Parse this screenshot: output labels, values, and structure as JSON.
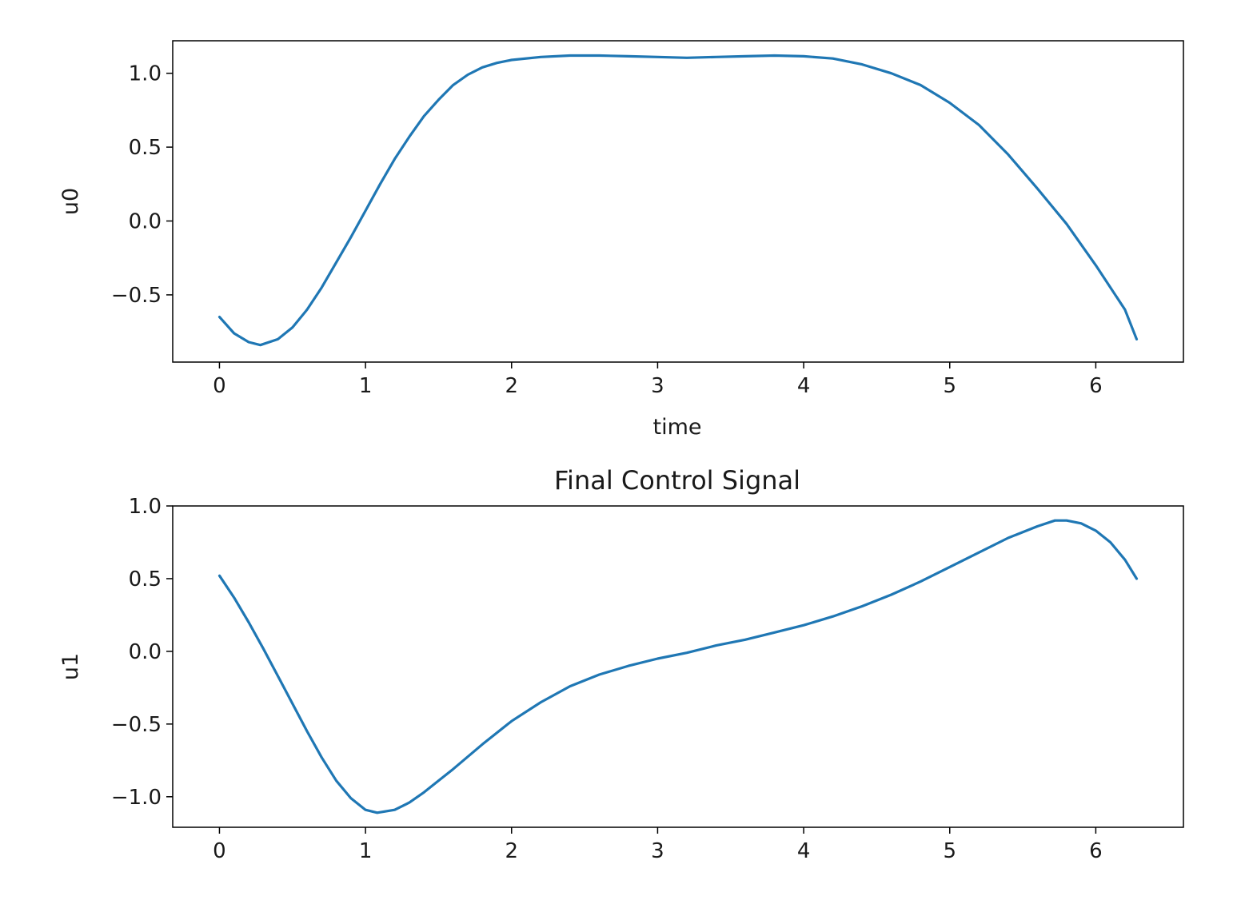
{
  "chart_data": [
    {
      "type": "line",
      "title": "",
      "xlabel": "time",
      "ylabel": "u0",
      "xlim": [
        -0.32,
        6.6
      ],
      "ylim": [
        -0.955,
        1.22
      ],
      "xticks": [
        0,
        1,
        2,
        3,
        4,
        5,
        6
      ],
      "yticks": [
        -0.5,
        0.0,
        0.5,
        1.0
      ],
      "xtick_labels": [
        "0",
        "1",
        "2",
        "3",
        "4",
        "5",
        "6"
      ],
      "ytick_labels": [
        "−0.5",
        "0.0",
        "0.5",
        "1.0"
      ],
      "grid": false,
      "line_color": "#1f77b4",
      "series": [
        {
          "x": [
            0.0,
            0.1,
            0.2,
            0.28,
            0.4,
            0.5,
            0.6,
            0.7,
            0.8,
            0.9,
            1.0,
            1.1,
            1.2,
            1.3,
            1.4,
            1.5,
            1.6,
            1.7,
            1.8,
            1.9,
            2.0,
            2.2,
            2.4,
            2.6,
            2.8,
            3.0,
            3.2,
            3.4,
            3.6,
            3.8,
            4.0,
            4.2,
            4.4,
            4.6,
            4.8,
            5.0,
            5.2,
            5.4,
            5.6,
            5.8,
            6.0,
            6.2,
            6.28
          ],
          "y": [
            -0.65,
            -0.76,
            -0.82,
            -0.84,
            -0.8,
            -0.72,
            -0.6,
            -0.45,
            -0.28,
            -0.11,
            0.07,
            0.25,
            0.42,
            0.57,
            0.71,
            0.82,
            0.92,
            0.99,
            1.04,
            1.07,
            1.09,
            1.11,
            1.12,
            1.12,
            1.115,
            1.11,
            1.105,
            1.11,
            1.115,
            1.12,
            1.115,
            1.1,
            1.06,
            1.0,
            0.92,
            0.8,
            0.65,
            0.45,
            0.22,
            -0.02,
            -0.3,
            -0.6,
            -0.8
          ]
        }
      ]
    },
    {
      "type": "line",
      "title": "Final Control Signal",
      "xlabel": "",
      "ylabel": "u1",
      "xlim": [
        -0.32,
        6.6
      ],
      "ylim": [
        -1.21,
        1.0
      ],
      "xticks": [
        0,
        1,
        2,
        3,
        4,
        5,
        6
      ],
      "yticks": [
        -1.0,
        -0.5,
        0.0,
        0.5,
        1.0
      ],
      "xtick_labels": [
        "0",
        "1",
        "2",
        "3",
        "4",
        "5",
        "6"
      ],
      "ytick_labels": [
        "−1.0",
        "−0.5",
        "0.0",
        "0.5",
        "1.0"
      ],
      "grid": false,
      "line_color": "#1f77b4",
      "series": [
        {
          "x": [
            0.0,
            0.1,
            0.2,
            0.3,
            0.4,
            0.5,
            0.6,
            0.7,
            0.8,
            0.9,
            1.0,
            1.08,
            1.2,
            1.3,
            1.4,
            1.5,
            1.6,
            1.8,
            2.0,
            2.2,
            2.4,
            2.6,
            2.8,
            3.0,
            3.2,
            3.4,
            3.6,
            3.8,
            4.0,
            4.2,
            4.4,
            4.6,
            4.8,
            5.0,
            5.2,
            5.4,
            5.6,
            5.72,
            5.8,
            5.9,
            6.0,
            6.1,
            6.2,
            6.28
          ],
          "y": [
            0.52,
            0.37,
            0.2,
            0.02,
            -0.17,
            -0.36,
            -0.55,
            -0.73,
            -0.89,
            -1.01,
            -1.09,
            -1.11,
            -1.09,
            -1.04,
            -0.97,
            -0.89,
            -0.81,
            -0.64,
            -0.48,
            -0.35,
            -0.24,
            -0.16,
            -0.1,
            -0.05,
            -0.01,
            0.04,
            0.08,
            0.13,
            0.18,
            0.24,
            0.31,
            0.39,
            0.48,
            0.58,
            0.68,
            0.78,
            0.86,
            0.9,
            0.9,
            0.88,
            0.83,
            0.75,
            0.63,
            0.5
          ]
        }
      ]
    }
  ]
}
